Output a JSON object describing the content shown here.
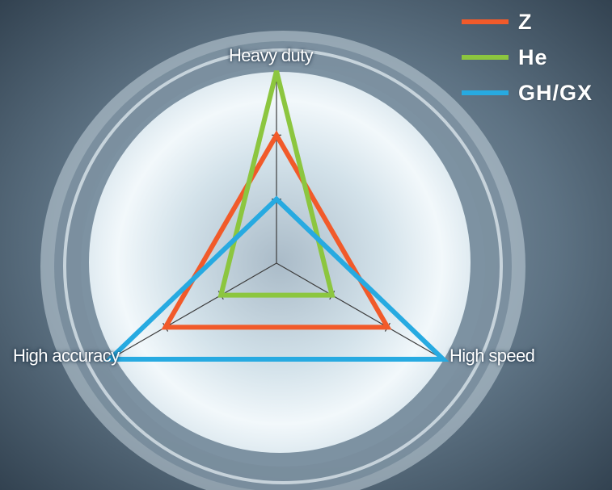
{
  "chart_data": {
    "type": "radar",
    "axes": [
      "Heavy duty",
      "High speed",
      "High accuracy"
    ],
    "rmax": 3,
    "series": [
      {
        "name": "Z",
        "color": "#f15a2a",
        "values": [
          2,
          2,
          2
        ]
      },
      {
        "name": "He",
        "color": "#8cc63f",
        "values": [
          3,
          1,
          1
        ]
      },
      {
        "name": "GH/GX",
        "color": "#27aae1",
        "values": [
          1,
          3,
          3
        ]
      }
    ]
  }
}
